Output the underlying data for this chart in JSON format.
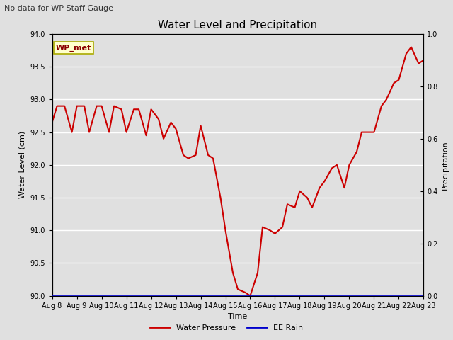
{
  "title": "Water Level and Precipitation",
  "top_left_text": "No data for WP Staff Gauge",
  "legend_box_text": "WP_met",
  "xlabel": "Time",
  "ylabel_left": "Water Level (cm)",
  "ylabel_right": "Precipitation",
  "ylim_left": [
    90.0,
    94.0
  ],
  "ylim_right": [
    0.0,
    1.0
  ],
  "yticks_left": [
    90.0,
    90.5,
    91.0,
    91.5,
    92.0,
    92.5,
    93.0,
    93.5,
    94.0
  ],
  "yticks_right": [
    0.0,
    0.2,
    0.4,
    0.6,
    0.8,
    1.0
  ],
  "xtick_labels": [
    "Aug 8",
    "Aug 9",
    "Aug 10",
    "Aug 11",
    "Aug 12",
    "Aug 13",
    "Aug 14",
    "Aug 15",
    "Aug 16",
    "Aug 17",
    "Aug 18",
    "Aug 19",
    "Aug 20",
    "Aug 21",
    "Aug 22",
    "Aug 23"
  ],
  "water_pressure_color": "#cc0000",
  "ee_rain_color": "#0000cc",
  "background_color": "#e0e0e0",
  "plot_bg_color": "#e0e0e0",
  "grid_color": "#ffffff",
  "legend_box_bg": "#ffffcc",
  "legend_box_border": "#aaaa00",
  "water_level_x": [
    0,
    0.2,
    0.5,
    0.8,
    1.0,
    1.3,
    1.5,
    1.8,
    2.0,
    2.3,
    2.5,
    2.8,
    3.0,
    3.3,
    3.5,
    3.8,
    4.0,
    4.3,
    4.5,
    4.8,
    5.0,
    5.3,
    5.5,
    5.8,
    6.0,
    6.3,
    6.5,
    6.8,
    7.0,
    7.3,
    7.5,
    7.8,
    8.0,
    8.3,
    8.5,
    8.8,
    9.0,
    9.3,
    9.5,
    9.8,
    10.0,
    10.3,
    10.5,
    10.8,
    11.0,
    11.3,
    11.5,
    11.8,
    12.0,
    12.3,
    12.5,
    12.8,
    13.0,
    13.3,
    13.5,
    13.8,
    14.0,
    14.3,
    14.5,
    14.8,
    15.0
  ],
  "water_level_y": [
    92.65,
    92.9,
    92.9,
    92.5,
    92.9,
    92.9,
    92.5,
    92.9,
    92.9,
    92.5,
    92.9,
    92.85,
    92.5,
    92.85,
    92.85,
    92.45,
    92.85,
    92.7,
    92.4,
    92.65,
    92.55,
    92.15,
    92.1,
    92.15,
    92.6,
    92.15,
    92.1,
    91.5,
    91.0,
    90.35,
    90.1,
    90.05,
    90.0,
    90.35,
    91.05,
    91.0,
    90.95,
    91.05,
    91.4,
    91.35,
    91.6,
    91.5,
    91.35,
    91.65,
    91.75,
    91.95,
    92.0,
    91.65,
    92.0,
    92.2,
    92.5,
    92.5,
    92.5,
    92.9,
    93.0,
    93.25,
    93.3,
    93.7,
    93.8,
    93.55,
    93.6
  ],
  "line_width": 1.5,
  "title_fontsize": 11,
  "label_fontsize": 8,
  "tick_fontsize": 7,
  "annotation_fontsize": 8
}
